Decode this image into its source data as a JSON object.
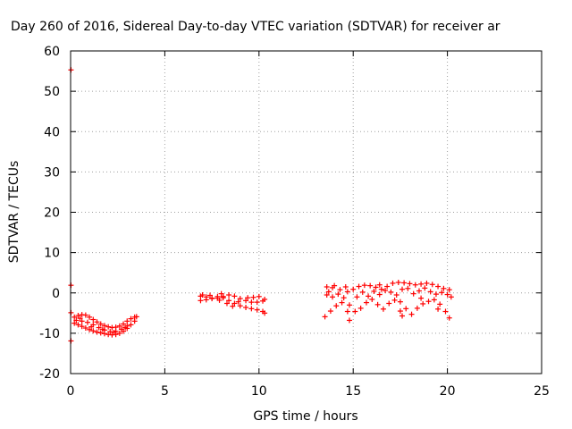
{
  "chart_data": {
    "type": "scatter",
    "title": "Day 260 of 2016, Sidereal Day-to-day VTEC variation (SDTVAR) for receiver ar",
    "xlabel": "GPS time / hours",
    "ylabel": "SDTVAR / TECUs",
    "xlim": [
      0,
      25
    ],
    "ylim": [
      -20,
      60
    ],
    "xticks": [
      "0",
      "5",
      "10",
      "15",
      "20",
      "25"
    ],
    "yticks": [
      "-20",
      "-10",
      "0",
      "10",
      "20",
      "30",
      "40",
      "50",
      "60"
    ],
    "grid": true,
    "legend": "none",
    "color": "#ff0000",
    "series": [
      {
        "points": [
          [
            0.02,
            55.3
          ],
          [
            0.02,
            1.9
          ],
          [
            0.02,
            -4.9
          ],
          [
            0.02,
            -11.9
          ],
          [
            0.2,
            -6.0
          ],
          [
            0.4,
            -5.6
          ],
          [
            0.6,
            -5.4
          ],
          [
            0.8,
            -5.5
          ],
          [
            1.0,
            -6.0
          ],
          [
            1.2,
            -6.6
          ],
          [
            1.4,
            -7.2
          ],
          [
            1.6,
            -7.7
          ],
          [
            1.8,
            -8.1
          ],
          [
            2.0,
            -8.4
          ],
          [
            2.2,
            -8.6
          ],
          [
            2.4,
            -8.5
          ],
          [
            2.6,
            -8.2
          ],
          [
            2.8,
            -7.7
          ],
          [
            3.0,
            -7.0
          ],
          [
            3.2,
            -6.4
          ],
          [
            3.4,
            -6.0
          ],
          [
            3.5,
            -5.9
          ],
          [
            0.2,
            -7.5
          ],
          [
            0.4,
            -7.9
          ],
          [
            0.6,
            -8.3
          ],
          [
            0.8,
            -8.7
          ],
          [
            1.0,
            -9.1
          ],
          [
            1.2,
            -9.4
          ],
          [
            1.4,
            -9.7
          ],
          [
            1.6,
            -9.9
          ],
          [
            1.8,
            -10.1
          ],
          [
            2.0,
            -10.3
          ],
          [
            2.2,
            -10.4
          ],
          [
            2.4,
            -10.3
          ],
          [
            2.6,
            -10.0
          ],
          [
            2.8,
            -9.5
          ],
          [
            3.0,
            -8.8
          ],
          [
            3.2,
            -7.9
          ],
          [
            3.4,
            -7.0
          ],
          [
            0.3,
            -6.8
          ],
          [
            0.6,
            -7.0
          ],
          [
            0.9,
            -7.3
          ],
          [
            1.2,
            -7.9
          ],
          [
            1.5,
            -8.6
          ],
          [
            1.8,
            -9.2
          ],
          [
            2.1,
            -9.6
          ],
          [
            2.4,
            -9.5
          ],
          [
            2.7,
            -9.0
          ],
          [
            3.0,
            -8.2
          ],
          [
            0.5,
            -6.3
          ],
          [
            1.1,
            -8.4
          ],
          [
            1.7,
            -9.0
          ],
          [
            2.3,
            -9.8
          ],
          [
            2.9,
            -8.6
          ],
          [
            6.9,
            -0.8
          ],
          [
            7.2,
            -1.0
          ],
          [
            7.5,
            -1.4
          ],
          [
            7.8,
            -1.3
          ],
          [
            8.1,
            -0.9
          ],
          [
            8.4,
            -0.5
          ],
          [
            8.7,
            -0.8
          ],
          [
            9.0,
            -1.4
          ],
          [
            9.3,
            -1.9
          ],
          [
            9.6,
            -2.3
          ],
          [
            9.9,
            -2.3
          ],
          [
            10.2,
            -2.0
          ],
          [
            6.9,
            -1.9
          ],
          [
            7.2,
            -1.7
          ],
          [
            7.5,
            -1.3
          ],
          [
            7.8,
            -0.9
          ],
          [
            8.1,
            -1.2
          ],
          [
            8.4,
            -1.9
          ],
          [
            8.7,
            -2.6
          ],
          [
            9.0,
            -3.2
          ],
          [
            9.3,
            -3.6
          ],
          [
            9.6,
            -3.9
          ],
          [
            9.9,
            -4.2
          ],
          [
            10.2,
            -4.6
          ],
          [
            7.0,
            -0.5
          ],
          [
            7.4,
            -0.6
          ],
          [
            7.9,
            -1.8
          ],
          [
            8.3,
            -2.6
          ],
          [
            8.6,
            -3.3
          ],
          [
            8.9,
            -2.2
          ],
          [
            9.4,
            -1.2
          ],
          [
            9.7,
            -1.1
          ],
          [
            10.0,
            -0.9
          ],
          [
            10.3,
            -1.6
          ],
          [
            10.3,
            -5.0
          ],
          [
            8.0,
            -0.2
          ],
          [
            13.6,
            1.5
          ],
          [
            13.9,
            1.3
          ],
          [
            14.3,
            0.8
          ],
          [
            14.7,
            0.3
          ],
          [
            15.0,
            0.9
          ],
          [
            15.3,
            1.6
          ],
          [
            15.6,
            1.9
          ],
          [
            15.9,
            1.8
          ],
          [
            16.2,
            1.4
          ],
          [
            16.5,
            0.9
          ],
          [
            16.8,
            1.6
          ],
          [
            17.1,
            2.4
          ],
          [
            17.4,
            2.6
          ],
          [
            17.7,
            2.5
          ],
          [
            18.0,
            2.3
          ],
          [
            18.3,
            2.0
          ],
          [
            18.6,
            2.2
          ],
          [
            18.9,
            2.4
          ],
          [
            19.2,
            2.1
          ],
          [
            19.5,
            1.6
          ],
          [
            19.8,
            1.1
          ],
          [
            20.1,
            0.8
          ],
          [
            13.6,
            -0.5
          ],
          [
            13.9,
            -1.0
          ],
          [
            14.2,
            -0.3
          ],
          [
            14.5,
            -1.2
          ],
          [
            14.8,
            -3.0
          ],
          [
            15.1,
            -4.6
          ],
          [
            15.4,
            -3.8
          ],
          [
            15.7,
            -2.4
          ],
          [
            16.0,
            -1.6
          ],
          [
            16.3,
            -2.9
          ],
          [
            16.6,
            -4.0
          ],
          [
            16.9,
            -2.6
          ],
          [
            17.2,
            -1.8
          ],
          [
            17.5,
            -2.2
          ],
          [
            17.8,
            -3.9
          ],
          [
            18.1,
            -5.3
          ],
          [
            18.4,
            -3.8
          ],
          [
            18.7,
            -2.7
          ],
          [
            19.0,
            -2.1
          ],
          [
            19.3,
            -1.7
          ],
          [
            19.6,
            -2.8
          ],
          [
            19.9,
            -4.6
          ],
          [
            20.1,
            -6.2
          ],
          [
            13.5,
            -5.9
          ],
          [
            13.8,
            -4.5
          ],
          [
            14.1,
            -3.2
          ],
          [
            14.4,
            -2.4
          ],
          [
            14.7,
            -4.6
          ],
          [
            14.8,
            -6.8
          ],
          [
            15.2,
            -1.0
          ],
          [
            15.5,
            0.2
          ],
          [
            16.1,
            0.4
          ],
          [
            16.4,
            -0.4
          ],
          [
            16.7,
            0.6
          ],
          [
            17.0,
            0.2
          ],
          [
            17.3,
            -0.5
          ],
          [
            17.6,
            0.9
          ],
          [
            17.9,
            1.1
          ],
          [
            18.2,
            -0.2
          ],
          [
            18.5,
            0.5
          ],
          [
            18.8,
            1.2
          ],
          [
            19.1,
            0.3
          ],
          [
            19.4,
            -0.3
          ],
          [
            19.7,
            0.1
          ],
          [
            20.0,
            -0.4
          ],
          [
            13.7,
            0.3
          ],
          [
            14.0,
            1.8
          ],
          [
            14.6,
            1.5
          ],
          [
            15.8,
            -0.8
          ],
          [
            16.4,
            2.0
          ],
          [
            17.5,
            -4.5
          ],
          [
            17.6,
            -5.7
          ],
          [
            18.6,
            -1.3
          ],
          [
            19.5,
            -4.0
          ],
          [
            20.2,
            -1.0
          ]
        ]
      }
    ]
  }
}
